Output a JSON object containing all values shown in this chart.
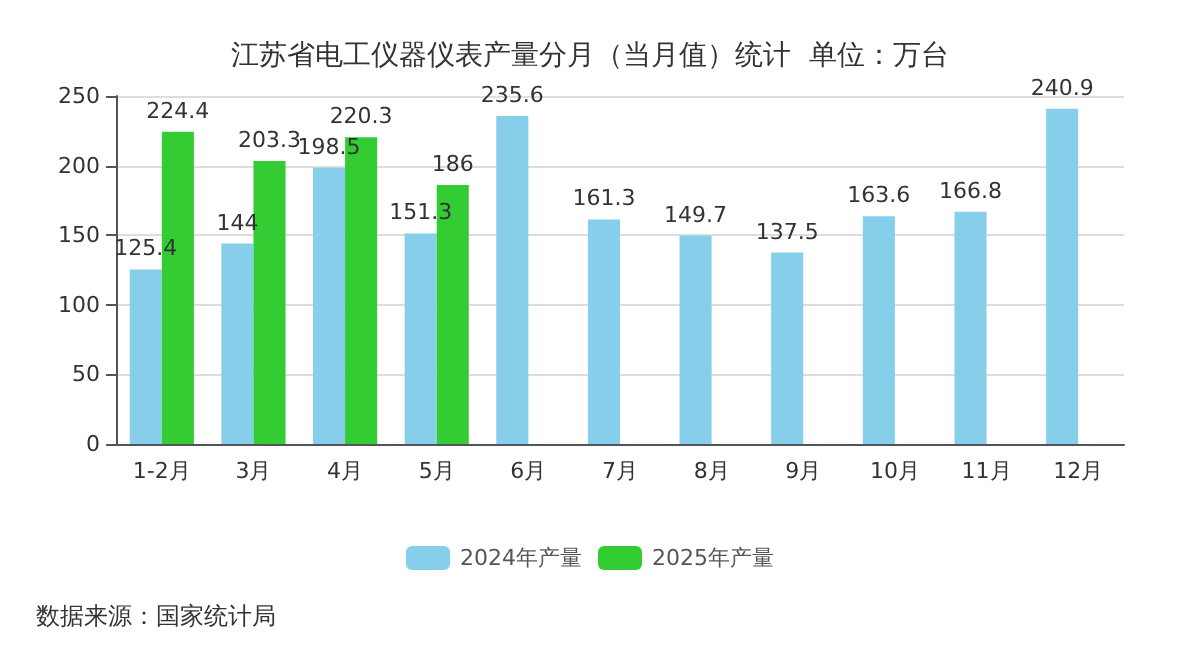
{
  "chart_data": {
    "type": "bar",
    "title": "江苏省电工仪器仪表产量分月（当月值）统计  单位：万台",
    "categories": [
      "1-2月",
      "3月",
      "4月",
      "5月",
      "6月",
      "7月",
      "8月",
      "9月",
      "10月",
      "11月",
      "12月"
    ],
    "series": [
      {
        "name": "2024年产量",
        "color": "#87ceeb",
        "values": [
          125.4,
          144,
          198.5,
          151.3,
          235.6,
          161.3,
          149.7,
          137.5,
          163.6,
          166.8,
          240.9
        ]
      },
      {
        "name": "2025年产量",
        "color": "#33cc33",
        "values": [
          224.4,
          203.3,
          220.3,
          186,
          null,
          null,
          null,
          null,
          null,
          null,
          null
        ]
      }
    ],
    "ylim": [
      0,
      250
    ],
    "yticks": [
      0,
      50,
      100,
      150,
      200,
      250
    ],
    "grid": "y",
    "legend": "bottom",
    "data_labels": true,
    "annotations": [
      "数据来源：国家统计局"
    ]
  }
}
